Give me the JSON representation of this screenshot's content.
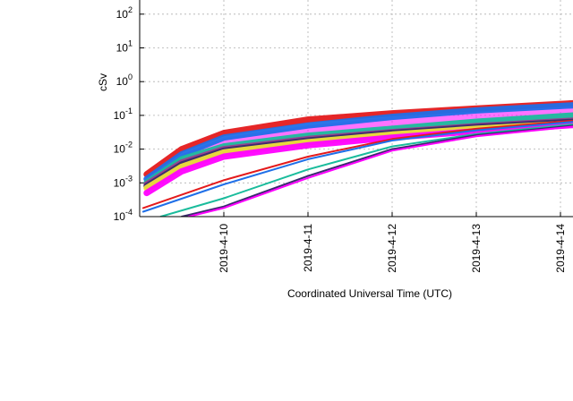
{
  "chart_data": {
    "type": "line",
    "title": "",
    "xlabel": "Coordinated Universal Time (UTC)",
    "ylabel": "cSv",
    "y_scale": "log",
    "ylim": [
      0.0001,
      300
    ],
    "xlim": [
      "2019-04-09T01:00",
      "2019-04-14T04:00"
    ],
    "x_ticks": [
      "2019-4-10",
      "2019-4-11",
      "2019-4-12",
      "2019-4-13",
      "2019-4-14"
    ],
    "y_ticks": [
      {
        "base": "10",
        "exp": "-4"
      },
      {
        "base": "10",
        "exp": "-3"
      },
      {
        "base": "10",
        "exp": "-2"
      },
      {
        "base": "10",
        "exp": "-1"
      },
      {
        "base": "10",
        "exp": "0"
      },
      {
        "base": "10",
        "exp": "1"
      },
      {
        "base": "10",
        "exp": "2"
      }
    ],
    "grid": true,
    "series": [
      {
        "color": "#e41a1c",
        "x": [
          "2019-04-09T02:00",
          "2019-04-09T12:00",
          "2019-04-10T00:00",
          "2019-04-11T00:00",
          "2019-04-12T00:00",
          "2019-04-13T00:00",
          "2019-04-14T04:00"
        ],
        "y": [
          0.0018,
          0.01,
          0.03,
          0.075,
          0.115,
          0.16,
          0.23
        ]
      },
      {
        "color": "#1f6fe8",
        "x": [
          "2019-04-09T02:00",
          "2019-04-09T12:00",
          "2019-04-10T00:00",
          "2019-04-11T00:00",
          "2019-04-12T00:00",
          "2019-04-13T00:00",
          "2019-04-14T04:00"
        ],
        "y": [
          0.0013,
          0.007,
          0.022,
          0.05,
          0.09,
          0.14,
          0.2
        ]
      },
      {
        "color": "#1abc9c",
        "x": [
          "2019-04-09T02:00",
          "2019-04-09T12:00",
          "2019-04-10T00:00",
          "2019-04-11T00:00",
          "2019-04-12T00:00",
          "2019-04-13T00:00",
          "2019-04-14T04:00"
        ],
        "y": [
          0.001,
          0.005,
          0.012,
          0.025,
          0.04,
          0.065,
          0.1
        ]
      },
      {
        "color": "#9b3d8f",
        "x": [
          "2019-04-09T02:00",
          "2019-04-09T12:00",
          "2019-04-10T00:00",
          "2019-04-11T00:00",
          "2019-04-12T00:00",
          "2019-04-13T00:00",
          "2019-04-14T04:00"
        ],
        "y": [
          0.0009,
          0.004,
          0.01,
          0.02,
          0.032,
          0.048,
          0.07
        ]
      },
      {
        "color": "#3a2a6e",
        "x": [
          "2019-04-09T02:00",
          "2019-04-09T12:00",
          "2019-04-10T00:00",
          "2019-04-11T00:00",
          "2019-04-12T00:00",
          "2019-04-13T00:00",
          "2019-04-14T04:00"
        ],
        "y": [
          0.0008,
          0.0035,
          0.009,
          0.018,
          0.03,
          0.045,
          0.065
        ]
      },
      {
        "color": "#f0e03a",
        "x": [
          "2019-04-09T02:00",
          "2019-04-09T12:00",
          "2019-04-10T00:00",
          "2019-04-11T00:00",
          "2019-04-12T00:00",
          "2019-04-13T00:00",
          "2019-04-14T04:00"
        ],
        "y": [
          0.0007,
          0.003,
          0.008,
          0.016,
          0.027,
          0.04,
          0.058
        ]
      },
      {
        "color": "#ff00ff",
        "x": [
          "2019-04-09T02:00",
          "2019-04-09T12:00",
          "2019-04-10T00:00",
          "2019-04-11T00:00",
          "2019-04-12T00:00",
          "2019-04-13T00:00",
          "2019-04-14T04:00"
        ],
        "y": [
          0.0005,
          0.0022,
          0.006,
          0.013,
          0.022,
          0.034,
          0.052
        ]
      },
      {
        "color": "#e41a1c",
        "x": [
          "2019-04-09T01:00",
          "2019-04-10T00:00",
          "2019-04-11T00:00",
          "2019-04-12T00:00",
          "2019-04-13T00:00",
          "2019-04-14T04:00"
        ],
        "y": [
          0.00018,
          0.0012,
          0.006,
          0.02,
          0.04,
          0.07
        ]
      },
      {
        "color": "#1f6fe8",
        "x": [
          "2019-04-09T01:00",
          "2019-04-10T00:00",
          "2019-04-11T00:00",
          "2019-04-12T00:00",
          "2019-04-13T00:00",
          "2019-04-14T04:00"
        ],
        "y": [
          0.00014,
          0.0009,
          0.005,
          0.018,
          0.036,
          0.065
        ]
      },
      {
        "color": "#1abc9c",
        "x": [
          "2019-04-09T06:00",
          "2019-04-10T00:00",
          "2019-04-11T00:00",
          "2019-04-12T00:00",
          "2019-04-13T00:00",
          "2019-04-14T04:00"
        ],
        "y": [
          0.0001,
          0.00035,
          0.0025,
          0.012,
          0.028,
          0.055
        ]
      },
      {
        "color": "#3a2a6e",
        "x": [
          "2019-04-09T12:00",
          "2019-04-10T00:00",
          "2019-04-11T00:00",
          "2019-04-12T00:00",
          "2019-04-13T00:00",
          "2019-04-14T04:00"
        ],
        "y": [
          0.0001,
          0.0002,
          0.0016,
          0.01,
          0.026,
          0.05
        ]
      },
      {
        "color": "#ff00ff",
        "x": [
          "2019-04-09T14:00",
          "2019-04-10T00:00",
          "2019-04-11T00:00",
          "2019-04-12T00:00",
          "2019-04-13T00:00",
          "2019-04-14T04:00"
        ],
        "y": [
          0.0001,
          0.00018,
          0.0014,
          0.009,
          0.024,
          0.047
        ]
      }
    ]
  }
}
